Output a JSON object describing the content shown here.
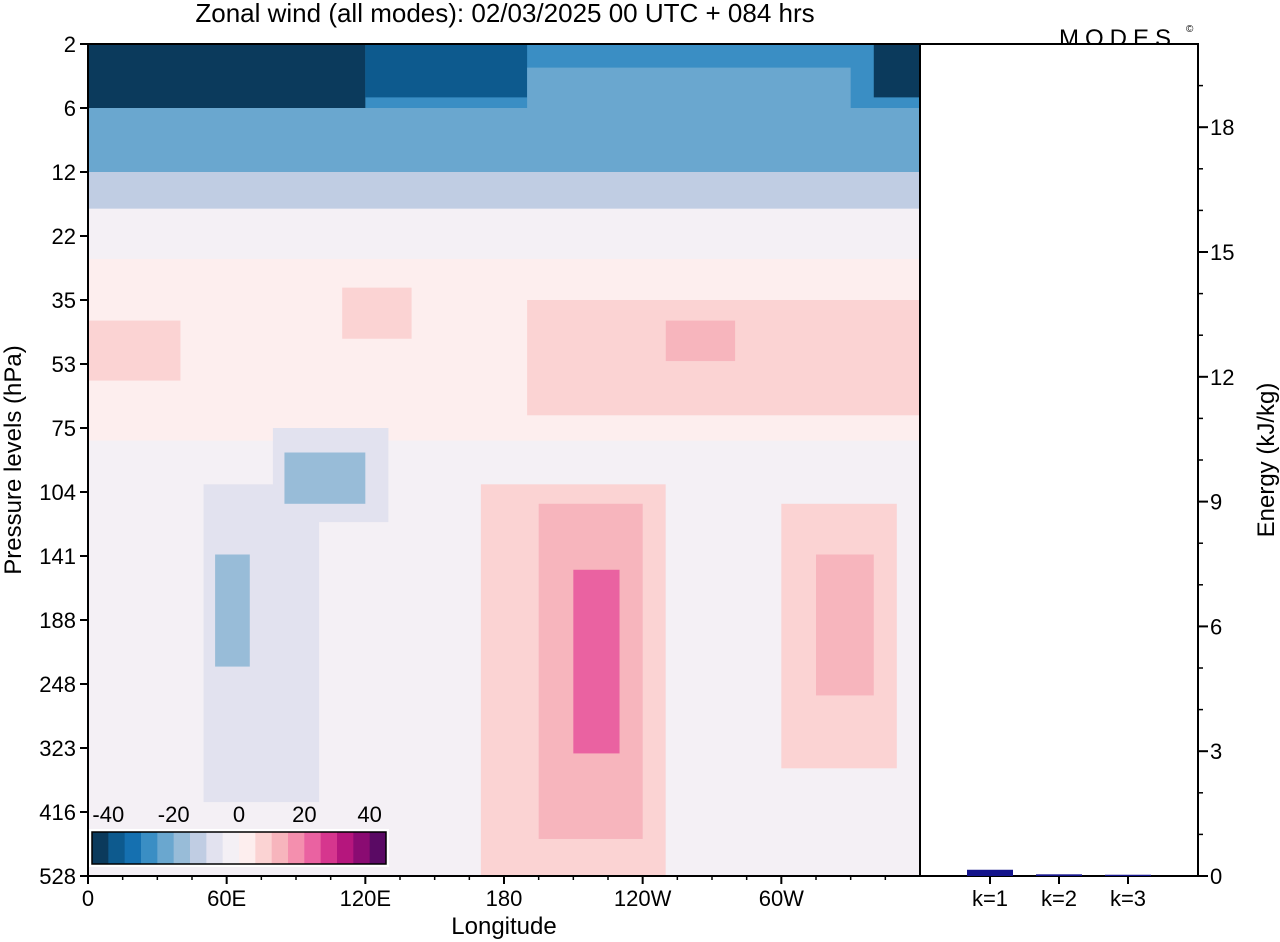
{
  "brand": "MODES",
  "brand_mark": "©",
  "chart_data": [
    {
      "type": "heatmap",
      "title": "Zonal wind (all modes):  02/03/2025  00 UTC  + 084 hrs",
      "xlabel": "Longitude",
      "ylabel": "Pressure levels (hPa)",
      "x_ticks": [
        "0",
        "60E",
        "120E",
        "180",
        "120W",
        "60W"
      ],
      "x_tick_values": [
        0,
        60,
        120,
        180,
        240,
        300
      ],
      "x_range": [
        0,
        360
      ],
      "y_ticks": [
        "2",
        "6",
        "12",
        "22",
        "35",
        "53",
        "75",
        "104",
        "141",
        "188",
        "248",
        "323",
        "416",
        "528"
      ],
      "colorbar": {
        "ticks": [
          "-40",
          "-20",
          "0",
          "20",
          "40"
        ],
        "tick_values": [
          -40,
          -20,
          0,
          20,
          40
        ],
        "range": [
          -45,
          45
        ],
        "colors": [
          "#0b3a5c",
          "#0d5a8e",
          "#1570b0",
          "#3a8ec4",
          "#6aa7cf",
          "#98bcd8",
          "#c0cde3",
          "#e2e2ef",
          "#f4f0f5",
          "#fdeeee",
          "#fbd3d3",
          "#f7b5bd",
          "#f48fae",
          "#ea62a1",
          "#d6368e",
          "#b5167d",
          "#8a0b72",
          "#5a0a64"
        ]
      },
      "cells": [
        {
          "lon": [
            0,
            360
          ],
          "p": [
            2,
            12
          ],
          "u": -30
        },
        {
          "lon": [
            0,
            120
          ],
          "p": [
            2,
            6
          ],
          "u": -42
        },
        {
          "lon": [
            120,
            190
          ],
          "p": [
            2,
            5
          ],
          "u": -38
        },
        {
          "lon": [
            340,
            360
          ],
          "p": [
            2,
            5
          ],
          "u": -42
        },
        {
          "lon": [
            190,
            330
          ],
          "p": [
            3,
            8
          ],
          "u": -25
        },
        {
          "lon": [
            0,
            360
          ],
          "p": [
            6,
            12
          ],
          "u": -22
        },
        {
          "lon": [
            0,
            360
          ],
          "p": [
            12,
            17
          ],
          "u": -12
        },
        {
          "lon": [
            0,
            360
          ],
          "p": [
            17,
            26
          ],
          "u": -5
        },
        {
          "lon": [
            0,
            360
          ],
          "p": [
            26,
            80
          ],
          "u": 3
        },
        {
          "lon": [
            0,
            40
          ],
          "p": [
            40,
            58
          ],
          "u": 7
        },
        {
          "lon": [
            110,
            140
          ],
          "p": [
            32,
            45
          ],
          "u": 7
        },
        {
          "lon": [
            190,
            360
          ],
          "p": [
            35,
            70
          ],
          "u": 7
        },
        {
          "lon": [
            250,
            280
          ],
          "p": [
            40,
            52
          ],
          "u": 11
        },
        {
          "lon": [
            0,
            50
          ],
          "p": [
            80,
            528
          ],
          "u": -4
        },
        {
          "lon": [
            50,
            100
          ],
          "p": [
            100,
            400
          ],
          "u": -10
        },
        {
          "lon": [
            55,
            70
          ],
          "p": [
            140,
            230
          ],
          "u": -18
        },
        {
          "lon": [
            80,
            130
          ],
          "p": [
            75,
            120
          ],
          "u": -10
        },
        {
          "lon": [
            85,
            120
          ],
          "p": [
            85,
            110
          ],
          "u": -18
        },
        {
          "lon": [
            130,
            180
          ],
          "p": [
            80,
            528
          ],
          "u": -3
        },
        {
          "lon": [
            170,
            250
          ],
          "p": [
            100,
            528
          ],
          "u": 8
        },
        {
          "lon": [
            195,
            240
          ],
          "p": [
            110,
            460
          ],
          "u": 14
        },
        {
          "lon": [
            210,
            230
          ],
          "p": [
            150,
            330
          ],
          "u": 22
        },
        {
          "lon": [
            250,
            300
          ],
          "p": [
            90,
            528
          ],
          "u": -4
        },
        {
          "lon": [
            300,
            350
          ],
          "p": [
            110,
            350
          ],
          "u": 8
        },
        {
          "lon": [
            315,
            340
          ],
          "p": [
            140,
            260
          ],
          "u": 14
        },
        {
          "lon": [
            350,
            360
          ],
          "p": [
            80,
            528
          ],
          "u": -4
        }
      ]
    },
    {
      "type": "bar",
      "ylabel": "Energy (kJ/kg)",
      "categories": [
        "k=1",
        "k=2",
        "k=3"
      ],
      "values": [
        0.15,
        0.04,
        0.03
      ],
      "ylim": [
        0,
        20
      ],
      "y_ticks": [
        "0",
        "3",
        "6",
        "9",
        "12",
        "15",
        "18"
      ],
      "y_tick_values": [
        0,
        3,
        6,
        9,
        12,
        15,
        18
      ],
      "bar_color": "#14148c"
    }
  ]
}
